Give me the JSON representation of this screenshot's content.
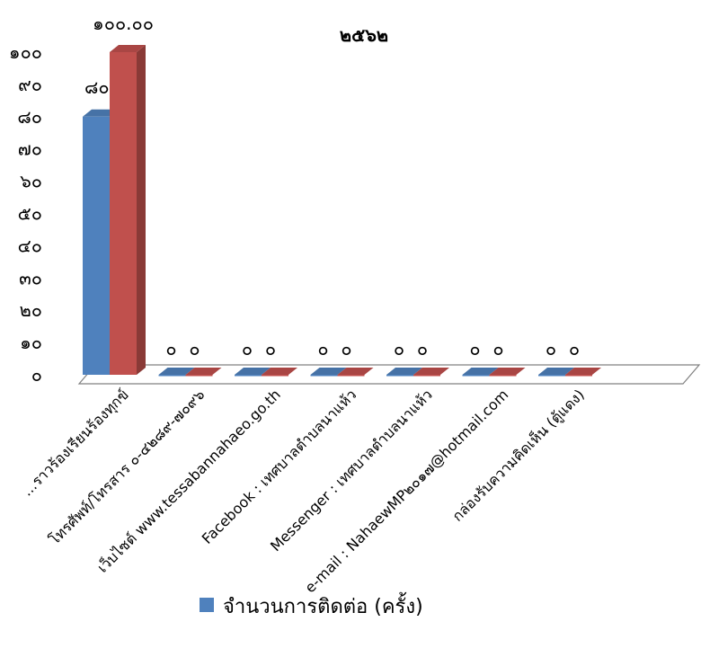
{
  "chart_data": {
    "type": "bar",
    "title": "",
    "subtitle": "๒๕๖๒",
    "categories": [
      "...ราวร้องเรียนร้องทุกข์",
      "โทรศัพท์/โทรสาร ๐-๔๒๘๙-๗๐๙๖",
      "เว็บไซต์ www.tessabannahaeo.go.th",
      "Facebook : เทศบาลตำบลนาแห้ว",
      "Messenger : เทศบาลตำบลนาแห้ว",
      "e-mail : NahaewMP๒๐๑๗@hotmail.com",
      "กล่องรับความคิดเห็น (ตู้แดง)"
    ],
    "series": [
      {
        "name": "จำนวนการติดต่อ (ครั้ง)",
        "color": "#4F81BD",
        "values": [
          80,
          0,
          0,
          0,
          0,
          0,
          0
        ],
        "labels": [
          "๘๐",
          "๐",
          "๐",
          "๐",
          "๐",
          "๐",
          "๐"
        ]
      },
      {
        "name": "",
        "color": "#C0504D",
        "values": [
          100,
          0,
          0,
          0,
          0,
          0,
          0
        ],
        "labels": [
          "๑๐๐.๐๐",
          "๐",
          "๐",
          "๐",
          "๐",
          "๐",
          "๐"
        ]
      }
    ],
    "ylim": [
      0,
      100
    ],
    "yticks": [
      0,
      10,
      20,
      30,
      40,
      50,
      60,
      70,
      80,
      90,
      100
    ],
    "ytick_labels": [
      "๐",
      "๑๐",
      "๒๐",
      "๓๐",
      "๔๐",
      "๕๐",
      "๖๐",
      "๗๐",
      "๘๐",
      "๙๐",
      "๑๐๐"
    ],
    "xlabel": "",
    "ylabel": "",
    "grid": false,
    "legend_position": "bottom"
  }
}
